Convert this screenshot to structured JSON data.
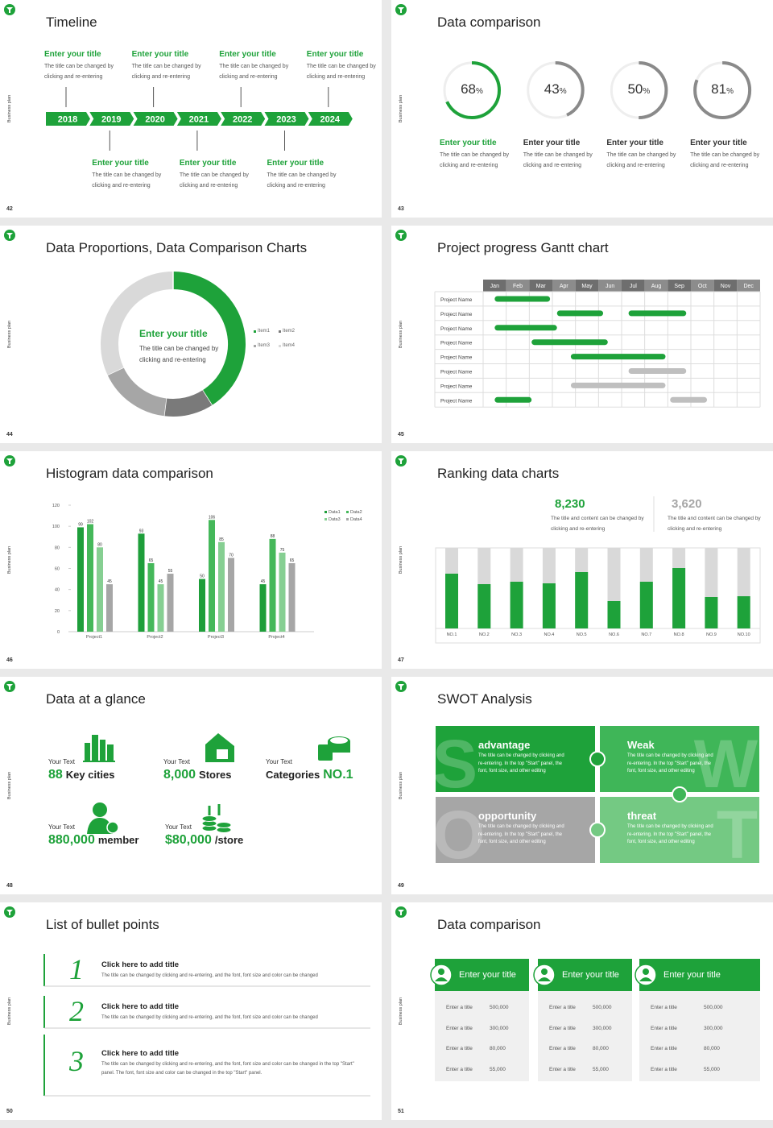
{
  "slides": [
    {
      "number": "42",
      "side": "Business plan",
      "title": "Timeline",
      "years": [
        "2018",
        "2019",
        "2020",
        "2021",
        "2022",
        "2023",
        "2024"
      ],
      "above": [
        {
          "title": "Enter your title",
          "text": "The title can be changed by clicking and re-entering"
        },
        {
          "title": "Enter your title",
          "text": "The title can be changed by clicking and re-entering"
        },
        {
          "title": "Enter your title",
          "text": "The title can be changed by clicking and re-entering"
        },
        {
          "title": "Enter your title",
          "text": "The title can be changed by clicking and re-entering"
        }
      ],
      "below": [
        {
          "title": "Enter your title",
          "text": "The title can be changed by clicking and re-entering"
        },
        {
          "title": "Enter your title",
          "text": "The title can be changed by clicking and re-entering"
        },
        {
          "title": "Enter your title",
          "text": "The title can be changed by clicking and re-entering"
        }
      ]
    },
    {
      "number": "43",
      "side": "Business plan",
      "title": "Data comparison",
      "rings": {
        "type": "ring",
        "values": [
          68,
          43,
          50,
          81
        ],
        "unit": "%",
        "colors": [
          "#1ea23a",
          "#8a8a8a",
          "#8a8a8a",
          "#8a8a8a"
        ],
        "track_color": "#eeeeee"
      },
      "items": [
        {
          "title": "Enter your title",
          "text": "The title can be changed by clicking and re-entering"
        },
        {
          "title": "Enter your title",
          "text": "The title can be changed by clicking and re-entering"
        },
        {
          "title": "Enter your title",
          "text": "The title can be changed by clicking and re-entering"
        },
        {
          "title": "Enter your title",
          "text": "The title can be changed by clicking and re-entering"
        }
      ]
    },
    {
      "number": "44",
      "side": "Business plan",
      "title": "Data Proportions, Data Comparison Charts",
      "center_title": "Enter your title",
      "center_text": "The title can be changed by clicking and re-entering",
      "donut": {
        "type": "donut",
        "categories": [
          "Item1",
          "Item2",
          "Item3",
          "Item4"
        ],
        "values": [
          41,
          11,
          16,
          32
        ],
        "colors": [
          "#1ea23a",
          "#7a7a7a",
          "#a6a6a6",
          "#d9d9d9"
        ]
      }
    },
    {
      "number": "45",
      "side": "Business plan",
      "title": "Project progress Gantt chart",
      "gantt": {
        "type": "gantt",
        "months": [
          "Jan",
          "Feb",
          "Mar",
          "Apr",
          "May",
          "Jun",
          "Jul",
          "Aug",
          "Sep",
          "Oct",
          "Nov",
          "Dec"
        ],
        "xlim": [
          0,
          12
        ],
        "rows": [
          {
            "label": "Project Name",
            "bars": [
              {
                "start": 0.5,
                "end": 2.9,
                "color": "#1ea23a"
              }
            ]
          },
          {
            "label": "Project Name",
            "bars": [
              {
                "start": 3.2,
                "end": 5.2,
                "color": "#1ea23a"
              },
              {
                "start": 6.3,
                "end": 8.8,
                "color": "#1ea23a"
              }
            ]
          },
          {
            "label": "Project Name",
            "bars": [
              {
                "start": 0.5,
                "end": 3.2,
                "color": "#1ea23a"
              }
            ]
          },
          {
            "label": "Project Name",
            "bars": [
              {
                "start": 2.1,
                "end": 5.4,
                "color": "#1ea23a"
              }
            ]
          },
          {
            "label": "Project Name",
            "bars": [
              {
                "start": 3.8,
                "end": 7.9,
                "color": "#1ea23a"
              }
            ]
          },
          {
            "label": "Project Name",
            "bars": [
              {
                "start": 6.3,
                "end": 8.8,
                "color": "#bfbfbf"
              }
            ]
          },
          {
            "label": "Project Name",
            "bars": [
              {
                "start": 3.8,
                "end": 7.9,
                "color": "#bfbfbf"
              }
            ]
          },
          {
            "label": "Project Name",
            "bars": [
              {
                "start": 0.5,
                "end": 2.1,
                "color": "#1ea23a"
              },
              {
                "start": 8.1,
                "end": 9.7,
                "color": "#bfbfbf"
              }
            ]
          }
        ]
      }
    },
    {
      "number": "46",
      "side": "Business plan",
      "title": "Histogram data comparison",
      "chart": {
        "type": "bar",
        "categories": [
          "Project1",
          "Project2",
          "Project3",
          "Project4"
        ],
        "series": [
          {
            "name": "Data1",
            "color": "#1e9e3a",
            "values": [
              99,
              93,
              50,
              45
            ]
          },
          {
            "name": "Data2",
            "color": "#45b85a",
            "values": [
              102,
              65,
              106,
              88
            ]
          },
          {
            "name": "Data3",
            "color": "#86cf92",
            "values": [
              80,
              45,
              85,
              75
            ]
          },
          {
            "name": "Data4",
            "color": "#a6a6a6",
            "values": [
              45,
              55,
              70,
              65
            ]
          }
        ],
        "ylim": [
          0,
          120
        ],
        "yticks": [
          0,
          20,
          40,
          60,
          80,
          100,
          120
        ]
      }
    },
    {
      "number": "47",
      "side": "Business plan",
      "title": "Ranking data charts",
      "stats": [
        {
          "value": "8,230",
          "text": "The title and content can be changed by clicking and re-entering",
          "color": "#1ea23a"
        },
        {
          "value": "3,620",
          "text": "The title and content can be changed by clicking and re-entering",
          "color": "#a6a6a6"
        }
      ],
      "chart": {
        "type": "bar",
        "categories": [
          "NO.1",
          "NO.2",
          "NO.3",
          "NO.4",
          "NO.5",
          "NO.6",
          "NO.7",
          "NO.8",
          "NO.9",
          "NO.10"
        ],
        "values": [
          68,
          55,
          58,
          56,
          70,
          34,
          58,
          75,
          39,
          40
        ],
        "ylim": [
          0,
          100
        ],
        "color": "#1ea23a",
        "track_color": "#d9d9d9"
      }
    },
    {
      "number": "48",
      "side": "Business plan",
      "title": "Data at a glance",
      "items": [
        {
          "label": "Your Text",
          "parts": [
            {
              "text": "88",
              "accent": true
            },
            {
              "text": "Key cities",
              "accent": false
            }
          ]
        },
        {
          "label": "Your Text",
          "parts": [
            {
              "text": "8,000",
              "accent": true
            },
            {
              "text": "Stores",
              "accent": false
            }
          ]
        },
        {
          "label": "Your Text",
          "parts": [
            {
              "text": "Categories",
              "accent": false
            },
            {
              "text": "NO.1",
              "accent": true
            }
          ]
        },
        {
          "label": "Your Text",
          "parts": [
            {
              "text": "880,000",
              "accent": true
            },
            {
              "text": "member",
              "accent": false
            }
          ]
        },
        {
          "label": "Your Text",
          "parts": [
            {
              "text": "$80,000",
              "accent": true
            },
            {
              "text": "/store",
              "accent": false
            }
          ]
        }
      ]
    },
    {
      "number": "49",
      "side": "Business plan",
      "title": "SWOT Analysis",
      "quadrants": [
        {
          "letter": "S",
          "title": "advantage",
          "color": "#1ea23a",
          "text": "The title can be changed by clicking and re-entering. In the top \"Start\" panel, the font, font size, and other editing"
        },
        {
          "letter": "W",
          "title": "Weak",
          "color": "#3fb658",
          "text": "The title can be changed by clicking and re-entering. In the top \"Start\" panel, the font, font size, and other editing"
        },
        {
          "letter": "O",
          "title": "opportunity",
          "color": "#a6a6a6",
          "text": "The title can be changed by clicking and re-entering. In the top \"Start\" panel, the font, font size, and other editing"
        },
        {
          "letter": "T",
          "title": "threat",
          "color": "#74c983",
          "text": "The title can be changed by clicking and re-entering. In the top \"Start\" panel, the font, font size, and other editing"
        }
      ]
    },
    {
      "number": "50",
      "side": "Business plan",
      "title": "List of bullet points",
      "bullets": [
        {
          "number": "1",
          "title": "Click here to add title",
          "text": "The title can be changed by clicking and re-entering, and the font, font size and color can be changed"
        },
        {
          "number": "2",
          "title": "Click here to add title",
          "text": "The title can be changed by clicking and re-entering, and the font, font size and color can be changed"
        },
        {
          "number": "3",
          "title": "Click here to add title",
          "text": "The title can be changed by clicking and re-entering, and the font, font size and color can be changed in the top \"Start\" panel. The font, font size and color can be changed in the top \"Start\" panel."
        }
      ]
    },
    {
      "number": "51",
      "side": "Business plan",
      "title": "Data comparison",
      "cards": [
        {
          "title": "Enter your title",
          "rows": [
            {
              "label": "Enter a title",
              "value": "500,000"
            },
            {
              "label": "Enter a title",
              "value": "300,000"
            },
            {
              "label": "Enter a title",
              "value": "80,000"
            },
            {
              "label": "Enter a title",
              "value": "55,000"
            }
          ]
        },
        {
          "title": "Enter your title",
          "rows": [
            {
              "label": "Enter a title",
              "value": "500,000"
            },
            {
              "label": "Enter a title",
              "value": "300,000"
            },
            {
              "label": "Enter a title",
              "value": "80,000"
            },
            {
              "label": "Enter a title",
              "value": "55,000"
            }
          ]
        },
        {
          "title": "Enter your title",
          "rows": [
            {
              "label": "Enter a title",
              "value": "500,000"
            },
            {
              "label": "Enter a title",
              "value": "300,000"
            },
            {
              "label": "Enter a title",
              "value": "80,000"
            },
            {
              "label": "Enter a title",
              "value": "55,000"
            }
          ]
        }
      ]
    }
  ]
}
